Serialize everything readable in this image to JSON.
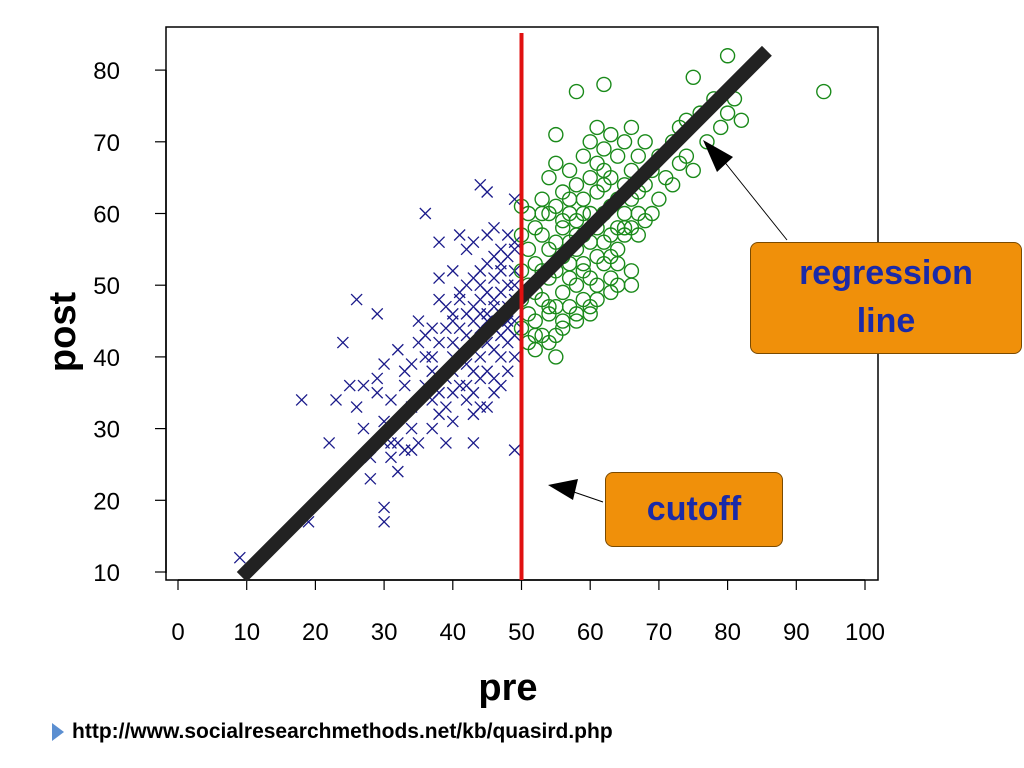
{
  "chart_data": {
    "type": "scatter",
    "title": "",
    "xlabel": "pre",
    "ylabel": "post",
    "xlim": [
      0,
      100
    ],
    "ylim": [
      10,
      85
    ],
    "x_ticks": [
      0,
      10,
      20,
      30,
      40,
      50,
      60,
      70,
      80,
      90,
      100
    ],
    "y_ticks": [
      10,
      20,
      30,
      40,
      50,
      60,
      70,
      80
    ],
    "grid": false,
    "cutoff": {
      "x": 50,
      "color": "#e01010",
      "label": "cutoff"
    },
    "regression_line": {
      "x": [
        10,
        85
      ],
      "y": [
        10,
        82
      ],
      "color": "#222222",
      "label": "regression line"
    },
    "series": [
      {
        "marker": "x",
        "color": "#1a1a8a",
        "points": [
          [
            9,
            12
          ],
          [
            18,
            34
          ],
          [
            19,
            17
          ],
          [
            22,
            28
          ],
          [
            23,
            34
          ],
          [
            24,
            42
          ],
          [
            25,
            36
          ],
          [
            26,
            48
          ],
          [
            26,
            33
          ],
          [
            27,
            36
          ],
          [
            27,
            30
          ],
          [
            28,
            23
          ],
          [
            28,
            26
          ],
          [
            29,
            37
          ],
          [
            29,
            35
          ],
          [
            29,
            46
          ],
          [
            30,
            17
          ],
          [
            30,
            19
          ],
          [
            30,
            28
          ],
          [
            30,
            31
          ],
          [
            30,
            39
          ],
          [
            31,
            34
          ],
          [
            31,
            26
          ],
          [
            32,
            41
          ],
          [
            32,
            28
          ],
          [
            32,
            24
          ],
          [
            33,
            36
          ],
          [
            33,
            38
          ],
          [
            34,
            33
          ],
          [
            34,
            39
          ],
          [
            34,
            30
          ],
          [
            35,
            45
          ],
          [
            35,
            28
          ],
          [
            35,
            42
          ],
          [
            36,
            60
          ],
          [
            36,
            36
          ],
          [
            36,
            43
          ],
          [
            37,
            44
          ],
          [
            37,
            38
          ],
          [
            37,
            30
          ],
          [
            37,
            40
          ],
          [
            38,
            56
          ],
          [
            38,
            42
          ],
          [
            38,
            35
          ],
          [
            38,
            48
          ],
          [
            38,
            51
          ],
          [
            39,
            47
          ],
          [
            39,
            44
          ],
          [
            39,
            37
          ],
          [
            39,
            33
          ],
          [
            39,
            28
          ],
          [
            40,
            40
          ],
          [
            40,
            46
          ],
          [
            40,
            42
          ],
          [
            40,
            38
          ],
          [
            40,
            45
          ],
          [
            40,
            31
          ],
          [
            40,
            52
          ],
          [
            41,
            57
          ],
          [
            41,
            44
          ],
          [
            41,
            49
          ],
          [
            41,
            36
          ],
          [
            41,
            41
          ],
          [
            41,
            48
          ],
          [
            42,
            55
          ],
          [
            42,
            46
          ],
          [
            42,
            43
          ],
          [
            42,
            39
          ],
          [
            42,
            50
          ],
          [
            42,
            34
          ],
          [
            43,
            56
          ],
          [
            43,
            51
          ],
          [
            43,
            47
          ],
          [
            43,
            42
          ],
          [
            43,
            38
          ],
          [
            43,
            45
          ],
          [
            43,
            35
          ],
          [
            43,
            28
          ],
          [
            44,
            64
          ],
          [
            44,
            52
          ],
          [
            44,
            48
          ],
          [
            44,
            44
          ],
          [
            44,
            40
          ],
          [
            44,
            37
          ],
          [
            44,
            46
          ],
          [
            44,
            50
          ],
          [
            45,
            63
          ],
          [
            45,
            57
          ],
          [
            45,
            53
          ],
          [
            45,
            49
          ],
          [
            45,
            45
          ],
          [
            45,
            42
          ],
          [
            45,
            38
          ],
          [
            45,
            33
          ],
          [
            45,
            46
          ],
          [
            46,
            58
          ],
          [
            46,
            54
          ],
          [
            46,
            51
          ],
          [
            46,
            48
          ],
          [
            46,
            44
          ],
          [
            46,
            41
          ],
          [
            46,
            37
          ],
          [
            46,
            47
          ],
          [
            47,
            55
          ],
          [
            47,
            52
          ],
          [
            47,
            49
          ],
          [
            47,
            46
          ],
          [
            47,
            43
          ],
          [
            47,
            40
          ],
          [
            47,
            36
          ],
          [
            47,
            53
          ],
          [
            48,
            57
          ],
          [
            48,
            54
          ],
          [
            48,
            50
          ],
          [
            48,
            47
          ],
          [
            48,
            44
          ],
          [
            48,
            42
          ],
          [
            48,
            38
          ],
          [
            48,
            45
          ],
          [
            49,
            62
          ],
          [
            49,
            56
          ],
          [
            49,
            52
          ],
          [
            49,
            48
          ],
          [
            49,
            45
          ],
          [
            49,
            43
          ],
          [
            49,
            40
          ],
          [
            49,
            27
          ],
          [
            49,
            50
          ],
          [
            49,
            55
          ],
          [
            40,
            35
          ],
          [
            42,
            36
          ],
          [
            43,
            32
          ],
          [
            44,
            33
          ],
          [
            36,
            40
          ],
          [
            37,
            34
          ],
          [
            38,
            32
          ],
          [
            33,
            27
          ],
          [
            34,
            27
          ],
          [
            31,
            28
          ],
          [
            46,
            35
          ]
        ]
      },
      {
        "marker": "o",
        "color": "#1a8a1a",
        "points": [
          [
            50,
            61
          ],
          [
            50,
            57
          ],
          [
            50,
            52
          ],
          [
            50,
            48
          ],
          [
            50,
            44
          ],
          [
            51,
            60
          ],
          [
            51,
            55
          ],
          [
            51,
            50
          ],
          [
            51,
            46
          ],
          [
            51,
            42
          ],
          [
            52,
            58
          ],
          [
            52,
            53
          ],
          [
            52,
            49
          ],
          [
            52,
            45
          ],
          [
            52,
            41
          ],
          [
            53,
            62
          ],
          [
            53,
            57
          ],
          [
            53,
            52
          ],
          [
            53,
            48
          ],
          [
            53,
            43
          ],
          [
            54,
            65
          ],
          [
            54,
            60
          ],
          [
            54,
            55
          ],
          [
            54,
            51
          ],
          [
            54,
            46
          ],
          [
            54,
            42
          ],
          [
            55,
            67
          ],
          [
            55,
            61
          ],
          [
            55,
            56
          ],
          [
            55,
            52
          ],
          [
            55,
            47
          ],
          [
            55,
            43
          ],
          [
            56,
            63
          ],
          [
            56,
            58
          ],
          [
            56,
            54
          ],
          [
            56,
            49
          ],
          [
            56,
            45
          ],
          [
            56,
            59
          ],
          [
            57,
            66
          ],
          [
            57,
            60
          ],
          [
            57,
            56
          ],
          [
            57,
            51
          ],
          [
            57,
            47
          ],
          [
            57,
            53
          ],
          [
            58,
            64
          ],
          [
            58,
            59
          ],
          [
            58,
            55
          ],
          [
            58,
            50
          ],
          [
            58,
            46
          ],
          [
            58,
            57
          ],
          [
            59,
            68
          ],
          [
            59,
            62
          ],
          [
            59,
            57
          ],
          [
            59,
            53
          ],
          [
            59,
            48
          ],
          [
            59,
            60
          ],
          [
            60,
            70
          ],
          [
            60,
            65
          ],
          [
            60,
            60
          ],
          [
            60,
            56
          ],
          [
            60,
            51
          ],
          [
            60,
            47
          ],
          [
            61,
            67
          ],
          [
            61,
            63
          ],
          [
            61,
            58
          ],
          [
            61,
            54
          ],
          [
            61,
            50
          ],
          [
            61,
            72
          ],
          [
            62,
            69
          ],
          [
            62,
            64
          ],
          [
            62,
            60
          ],
          [
            62,
            56
          ],
          [
            62,
            53
          ],
          [
            62,
            66
          ],
          [
            63,
            71
          ],
          [
            63,
            65
          ],
          [
            63,
            61
          ],
          [
            63,
            57
          ],
          [
            63,
            54
          ],
          [
            63,
            51
          ],
          [
            64,
            68
          ],
          [
            64,
            62
          ],
          [
            64,
            58
          ],
          [
            64,
            55
          ],
          [
            64,
            50
          ],
          [
            65,
            70
          ],
          [
            65,
            64
          ],
          [
            65,
            60
          ],
          [
            65,
            57
          ],
          [
            66,
            72
          ],
          [
            66,
            66
          ],
          [
            66,
            62
          ],
          [
            66,
            58
          ],
          [
            67,
            68
          ],
          [
            67,
            63
          ],
          [
            67,
            60
          ],
          [
            68,
            70
          ],
          [
            68,
            64
          ],
          [
            69,
            66
          ],
          [
            69,
            60
          ],
          [
            70,
            68
          ],
          [
            70,
            62
          ],
          [
            71,
            65
          ],
          [
            72,
            70
          ],
          [
            72,
            64
          ],
          [
            73,
            72
          ],
          [
            73,
            67
          ],
          [
            74,
            73
          ],
          [
            74,
            68
          ],
          [
            75,
            79
          ],
          [
            75,
            66
          ],
          [
            76,
            74
          ],
          [
            77,
            70
          ],
          [
            78,
            76
          ],
          [
            79,
            72
          ],
          [
            80,
            82
          ],
          [
            80,
            74
          ],
          [
            81,
            76
          ],
          [
            82,
            73
          ],
          [
            94,
            77
          ],
          [
            58,
            77
          ],
          [
            62,
            78
          ],
          [
            55,
            71
          ],
          [
            57,
            62
          ],
          [
            53,
            60
          ],
          [
            55,
            40
          ],
          [
            52,
            43
          ],
          [
            56,
            44
          ],
          [
            58,
            45
          ],
          [
            54,
            47
          ],
          [
            60,
            46
          ],
          [
            59,
            52
          ],
          [
            61,
            48
          ],
          [
            63,
            49
          ],
          [
            65,
            58
          ],
          [
            66,
            52
          ],
          [
            64,
            53
          ],
          [
            66,
            50
          ],
          [
            67,
            57
          ],
          [
            68,
            59
          ]
        ]
      }
    ],
    "annotations": [
      {
        "text": "regression line",
        "lines": [
          "regression",
          "line"
        ]
      },
      {
        "text": "cutoff"
      }
    ]
  },
  "callouts": {
    "regression_line1": "regression",
    "regression_line2": "line",
    "cutoff": "cutoff"
  },
  "footer": {
    "url": "http://www.socialresearchmethods.net/kb/quasird.php"
  },
  "colors": {
    "callout_fill": "#f0900a",
    "callout_text": "#1a2aa8",
    "bullet": "#5b8fd1"
  }
}
